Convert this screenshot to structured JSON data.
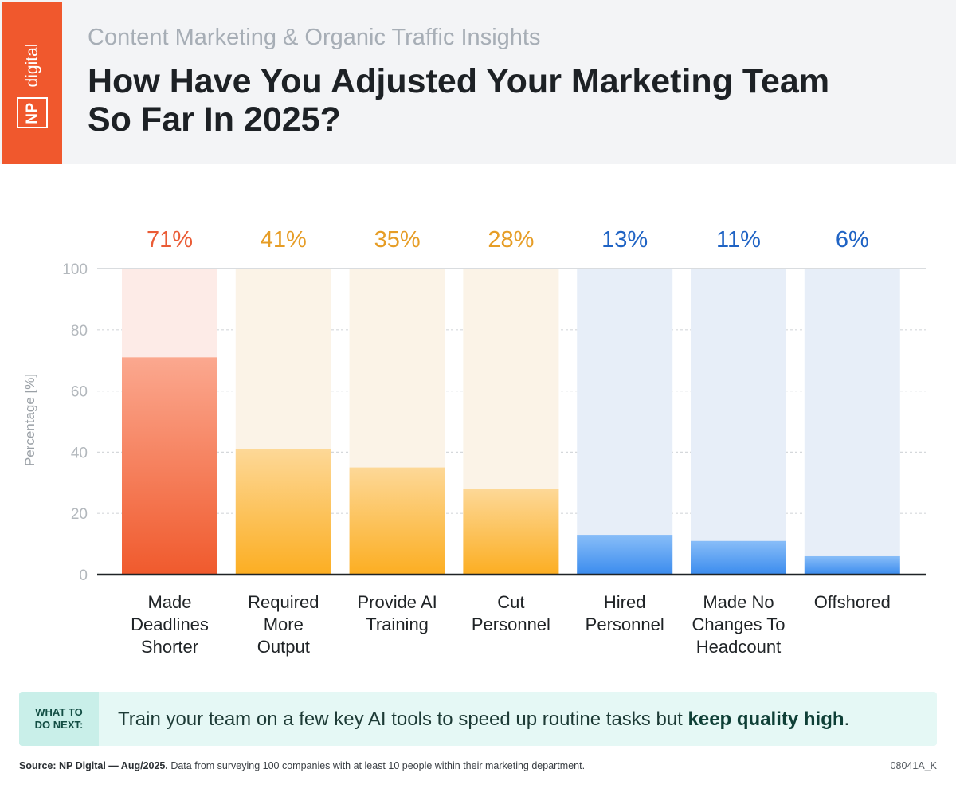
{
  "brand": {
    "np": "NP",
    "digital": "digital"
  },
  "header": {
    "subtitle": "Content Marketing & Organic Traffic Insights",
    "title_line1": "How Have You Adjusted Your Marketing Team",
    "title_line2": "So Far In 2025?"
  },
  "chart_data": {
    "type": "bar",
    "title": "How Have You Adjusted Your Marketing Team So Far In 2025?",
    "xlabel": "",
    "ylabel": "Percentage [%]",
    "ylim": [
      0,
      100
    ],
    "yticks": [
      0,
      20,
      40,
      60,
      80,
      100
    ],
    "grid": true,
    "categories": [
      [
        "Made",
        "Deadlines",
        "Shorter"
      ],
      [
        "Required",
        "More",
        "Output"
      ],
      [
        "Provide AI",
        "Training"
      ],
      [
        "Cut",
        "Personnel"
      ],
      [
        "Hired",
        "Personnel"
      ],
      [
        "Made No",
        "Changes To",
        "Headcount"
      ],
      [
        "Offshored"
      ]
    ],
    "values": [
      71,
      41,
      35,
      28,
      13,
      11,
      6
    ],
    "value_labels": [
      "71%",
      "41%",
      "35%",
      "28%",
      "13%",
      "11%",
      "6%"
    ],
    "color_groups": [
      "red",
      "orange",
      "orange",
      "orange",
      "blue",
      "blue",
      "blue"
    ]
  },
  "colors": {
    "brand": "#f0582d",
    "red_label": "#ea5b35",
    "red_top": "#fba88f",
    "red_bottom": "#f05a2d",
    "red_bg": "#fdebe7",
    "orange_label": "#e69d26",
    "orange_top": "#fdd897",
    "orange_bottom": "#fcae22",
    "orange_bg": "#fbf3e7",
    "blue_label": "#1f63c4",
    "blue_top": "#88bdf8",
    "blue_bottom": "#3b8cee",
    "blue_bg": "#e7eef8"
  },
  "next": {
    "tag_line1": "WHAT TO",
    "tag_line2": "DO NEXT:",
    "text_plain": "Train your team on a few key AI tools to speed up routine tasks but ",
    "text_bold": "keep quality high",
    "text_end": "."
  },
  "footer": {
    "source_bold": "Source: NP Digital — Aug/2025.",
    "source_text": " Data from surveying 100 companies with at least 10 people within their marketing department.",
    "code": "08041A_K"
  }
}
